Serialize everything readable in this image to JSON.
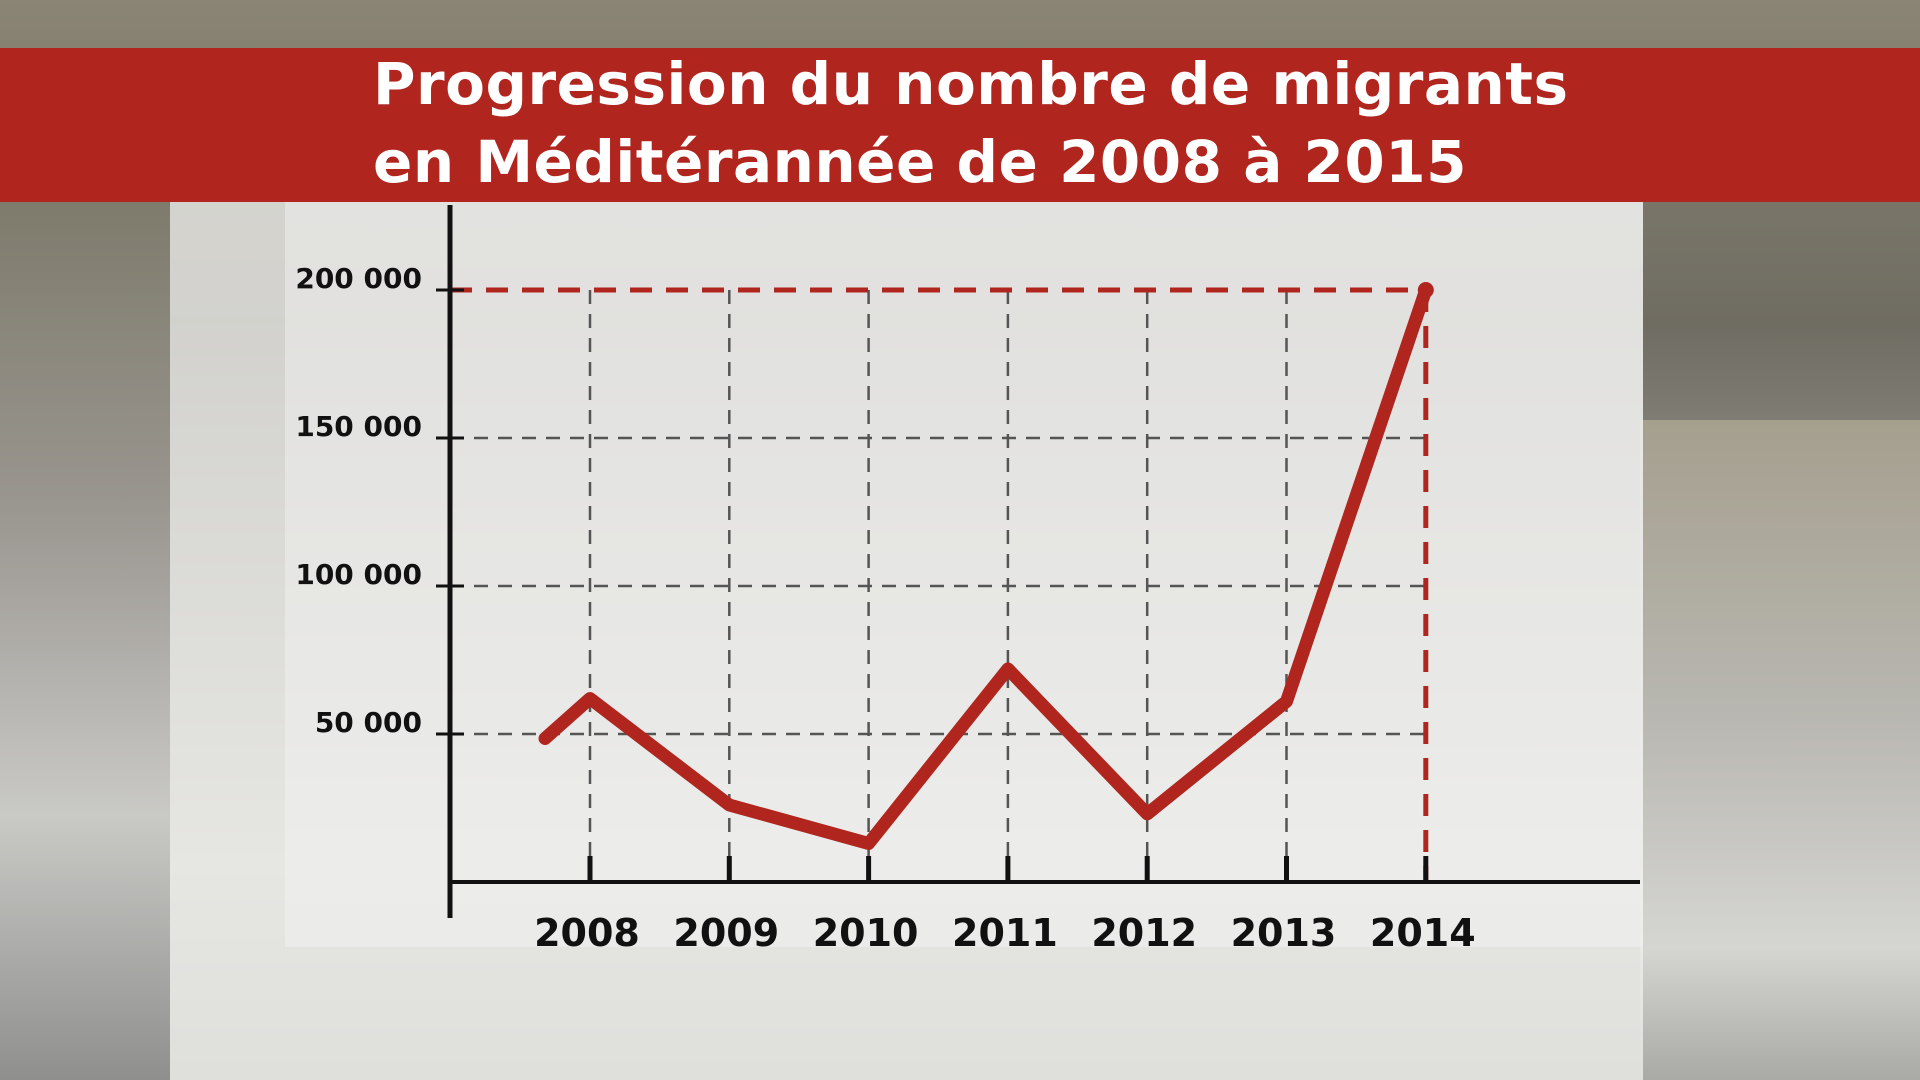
{
  "title": {
    "line1": "Progression du nombre de migrants",
    "line2": "en Méditérannée de 2008 à 2015"
  },
  "colors": {
    "title_bar": "#b0261f",
    "line": "#b0261f",
    "axis": "#111111",
    "grid": "#555555",
    "highlight_guides": "#b0261f"
  },
  "chart_data": {
    "type": "line",
    "title": "Progression du nombre de migrants en Méditérannée de 2008 à 2015",
    "xlabel": "",
    "ylabel": "",
    "categories": [
      "2008",
      "2009",
      "2010",
      "2011",
      "2012",
      "2013",
      "2014"
    ],
    "series": [
      {
        "values": [
          62000,
          26000,
          13000,
          72000,
          23000,
          61000,
          200000
        ]
      }
    ],
    "ylim": [
      0,
      200000
    ],
    "yticks": [
      50000,
      100000,
      150000,
      200000
    ],
    "ytick_labels": [
      "50 000",
      "100 000",
      "150 000",
      "200 000"
    ],
    "grid": true,
    "grid_style": "dashed",
    "highlight": {
      "category": "2014",
      "value": 200000
    }
  }
}
